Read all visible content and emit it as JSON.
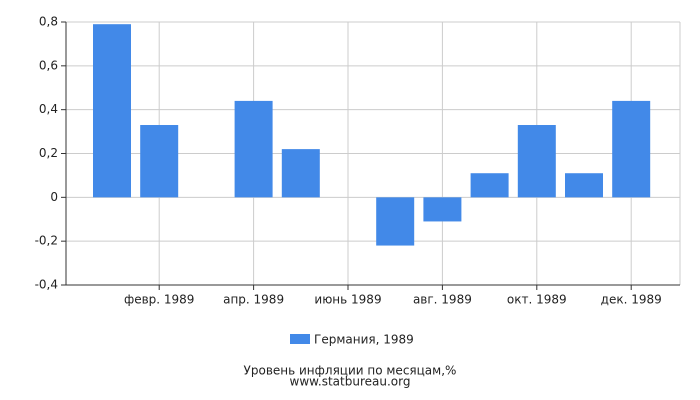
{
  "chart_data": {
    "type": "bar",
    "title": "Уровень инфляции по месяцам,%",
    "source": "www.statbureau.org",
    "categories": [
      null,
      "февр. 1989",
      null,
      "апр. 1989",
      null,
      "июнь 1989",
      null,
      "авг. 1989",
      null,
      "окт. 1989",
      null,
      "дек. 1989"
    ],
    "series": [
      {
        "name": "Германия, 1989",
        "color": "#4289e8",
        "values": [
          0.79,
          0.33,
          0,
          0.44,
          0.22,
          0,
          -0.22,
          -0.11,
          0.11,
          0.33,
          0.11,
          0.44
        ]
      }
    ],
    "ylim": [
      -0.4,
      0.8
    ],
    "yticks": [
      {
        "value": -0.4,
        "label": "-0,4"
      },
      {
        "value": -0.2,
        "label": "-0,2"
      },
      0,
      {
        "value": 0.2,
        "label": "0,2"
      },
      {
        "value": 0.4,
        "label": "0,4"
      },
      {
        "value": 0.6,
        "label": "0,6"
      },
      {
        "value": 0.8,
        "label": "0,8"
      }
    ],
    "grid": true,
    "legend": "bottom"
  }
}
